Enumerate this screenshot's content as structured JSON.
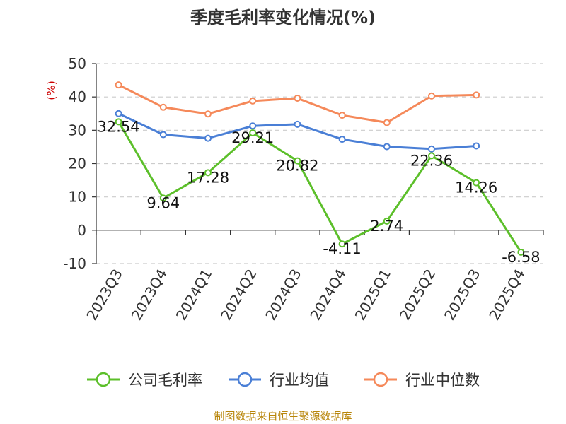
{
  "source": "制图数据来自恒生聚源数据库",
  "colors": {
    "company": "#5cbf2a",
    "avg": "#4a7fd6",
    "median": "#f5895a",
    "grid": "#cccccc",
    "axis": "#333333"
  },
  "chart_data": {
    "type": "line",
    "title": "季度毛利率变化情况(%)",
    "ylabel": "(%)",
    "ylim": [
      -10,
      50
    ],
    "yticks": [
      -10,
      0,
      10,
      20,
      30,
      40,
      50
    ],
    "grid": true,
    "legend_position": "bottom",
    "categories": [
      "2023Q3",
      "2023Q4",
      "2024Q1",
      "2024Q2",
      "2024Q3",
      "2024Q4",
      "2025Q1",
      "2025Q2",
      "2025Q3",
      "2025Q4"
    ],
    "series": [
      {
        "name": "公司毛利率",
        "color": "#5cbf2a",
        "values": [
          32.54,
          9.64,
          17.28,
          29.21,
          20.82,
          -4.11,
          2.74,
          22.36,
          14.26,
          -6.58
        ],
        "labels": [
          "32.54",
          "9.64",
          "17.28",
          "29.21",
          "20.82",
          "-4.11",
          "2.74",
          "22.36",
          "14.26",
          "-6.58"
        ]
      },
      {
        "name": "行业均值",
        "color": "#4a7fd6",
        "values": [
          35.0,
          28.7,
          27.6,
          31.3,
          31.8,
          27.3,
          25.1,
          24.4,
          25.3,
          null
        ]
      },
      {
        "name": "行业中位数",
        "color": "#f5895a",
        "values": [
          43.6,
          36.9,
          34.9,
          38.8,
          39.6,
          34.5,
          32.3,
          40.3,
          40.6,
          null
        ]
      }
    ]
  }
}
